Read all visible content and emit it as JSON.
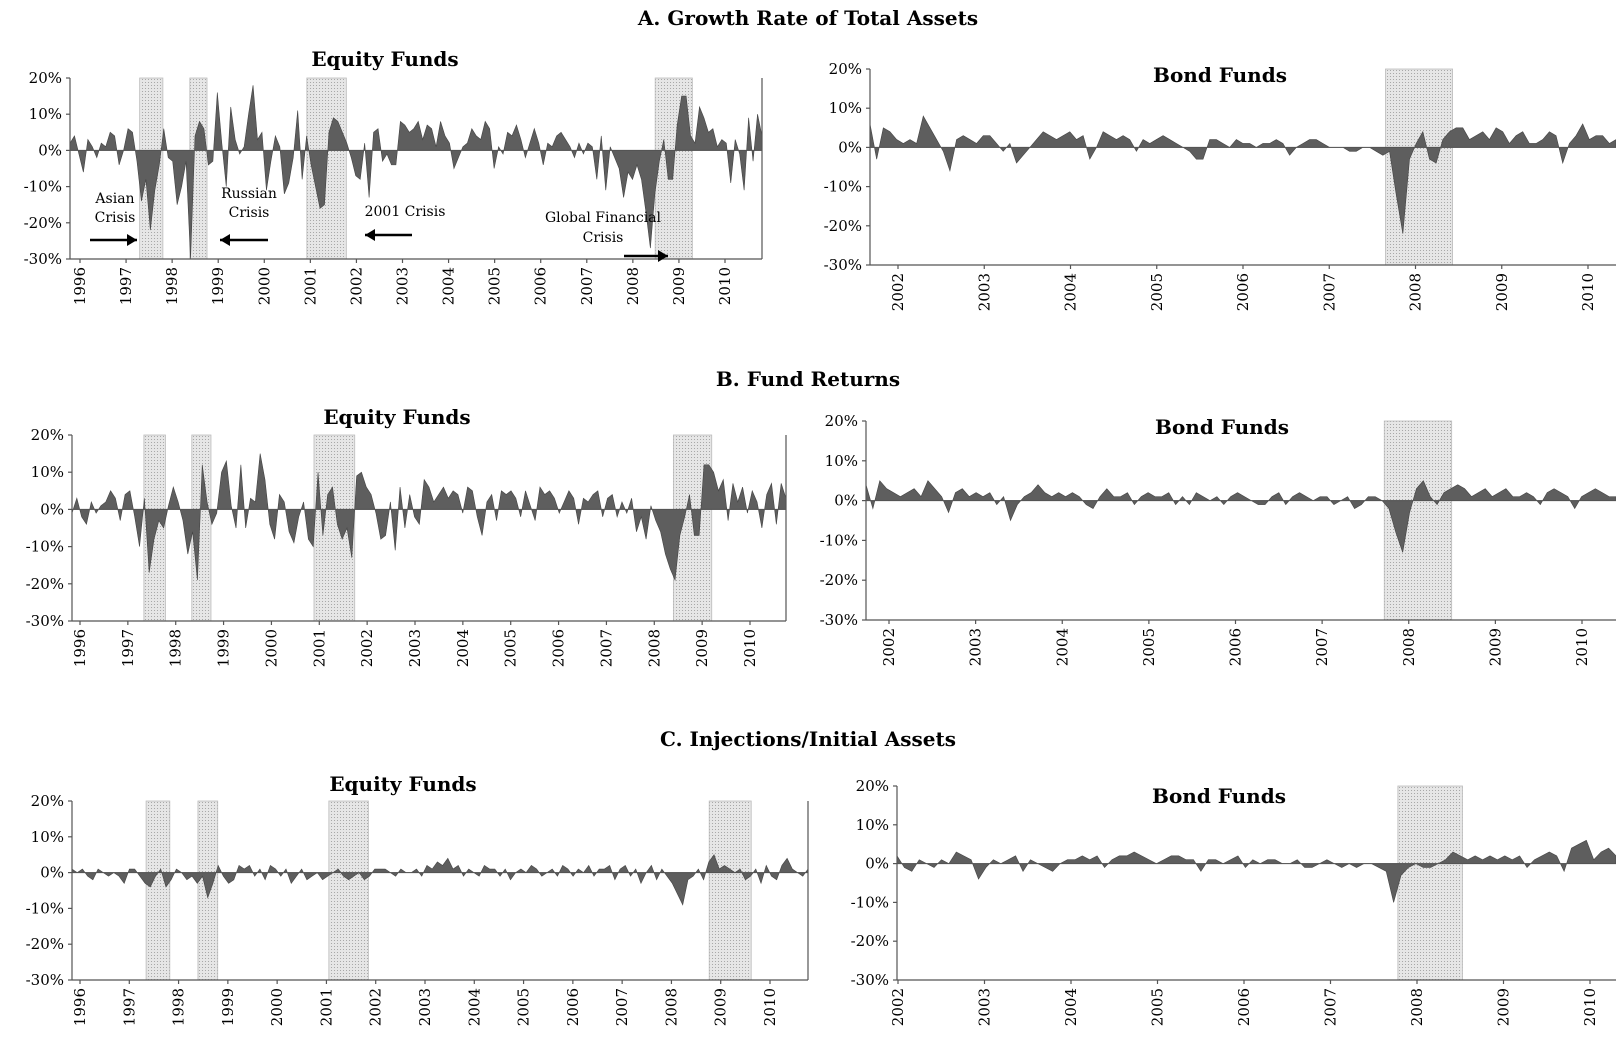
{
  "sections": [
    {
      "title": "A. Growth Rate of Total Assets"
    },
    {
      "title": "B. Fund Returns"
    },
    {
      "title": "C. Injections/Initial Assets"
    }
  ],
  "chart_data": [
    {
      "type": "area",
      "panel": "A-equity",
      "title": "Equity Funds",
      "x_start": 1996.0,
      "x_end": 2010.9,
      "ylim": [
        -30,
        20
      ],
      "yticks": [
        "20%",
        "10%",
        "0%",
        "-10%",
        "-20%",
        "-30%"
      ],
      "xticks": [
        "1996",
        "1997",
        "1998",
        "1999",
        "2000",
        "2001",
        "2002",
        "2003",
        "2004",
        "2005",
        "2006",
        "2007",
        "2008",
        "2009",
        "2010"
      ],
      "shaded": [
        [
          1997.5,
          1998.0
        ],
        [
          1998.58,
          1998.95
        ],
        [
          2001.1,
          2001.95
        ],
        [
          2008.6,
          2009.4
        ]
      ],
      "annotations": [
        {
          "text": "Asian Crisis",
          "lines": [
            "Asian",
            "Crisis"
          ]
        },
        {
          "text": "Russian Crisis",
          "lines": [
            "Russian",
            "Crisis"
          ]
        },
        {
          "text": "2001 Crisis",
          "lines": [
            "2001 Crisis"
          ]
        },
        {
          "text": "Global Financial Crisis",
          "lines": [
            "Global Financial",
            "Crisis"
          ]
        }
      ],
      "values": [
        2,
        4,
        -1,
        -6,
        3,
        1,
        -2,
        2,
        1,
        5,
        4,
        -4,
        0,
        6,
        5,
        -3,
        -14,
        -8,
        -22,
        -11,
        -4,
        6,
        -2,
        -3,
        -15,
        -10,
        -3,
        -30,
        4,
        8,
        6,
        -4,
        -3,
        16,
        2,
        -10,
        12,
        3,
        -1,
        1,
        10,
        18,
        3,
        5,
        -11,
        -3,
        4,
        1,
        -12,
        -9,
        -2,
        11,
        -8,
        4,
        -4,
        -10,
        -16,
        -15,
        5,
        9,
        8,
        5,
        2,
        -2,
        -7,
        -8,
        2,
        -13,
        5,
        6,
        -3,
        -1,
        -4,
        -4,
        8,
        7,
        5,
        6,
        8,
        3,
        7,
        6,
        1,
        8,
        4,
        2,
        -5,
        -2,
        1,
        2,
        6,
        4,
        3,
        8,
        6,
        -5,
        1,
        -1,
        5,
        4,
        7,
        3,
        -2,
        2,
        6,
        2,
        -4,
        2,
        1,
        4,
        5,
        3,
        1,
        -2,
        2,
        -1,
        2,
        1,
        -8,
        4,
        -11,
        1,
        -2,
        -5,
        -13,
        -6,
        -8,
        -4,
        -8,
        -17,
        -27,
        -12,
        -3,
        3,
        -8,
        -8,
        7,
        15,
        15,
        4,
        2,
        12,
        9,
        5,
        6,
        1,
        3,
        2,
        -9,
        3,
        -1,
        -11,
        9,
        -3,
        10,
        4
      ]
    },
    {
      "type": "area",
      "panel": "A-bond",
      "title": "Bond Funds",
      "x_start": 2002.0,
      "x_end": 2010.9,
      "ylim": [
        -30,
        20
      ],
      "yticks": [
        "20%",
        "10%",
        "0%",
        "-10%",
        "-20%",
        "-30%"
      ],
      "xticks": [
        "2002",
        "2003",
        "2004",
        "2005",
        "2006",
        "2007",
        "2008",
        "2009",
        "2010"
      ],
      "shaded": [
        [
          2008.15,
          2008.95
        ]
      ],
      "values": [
        6,
        -3,
        5,
        4,
        2,
        1,
        2,
        1,
        8,
        5,
        2,
        -1,
        -6,
        2,
        3,
        2,
        1,
        3,
        3,
        1,
        -1,
        1,
        -4,
        -2,
        0,
        2,
        4,
        3,
        2,
        3,
        4,
        2,
        3,
        -3,
        0,
        4,
        3,
        2,
        3,
        2,
        -1,
        2,
        1,
        2,
        3,
        2,
        1,
        0,
        -1,
        -3,
        -3,
        2,
        2,
        1,
        0,
        2,
        1,
        1,
        0,
        1,
        1,
        2,
        1,
        -2,
        0,
        1,
        2,
        2,
        1,
        0,
        0,
        0,
        -1,
        -1,
        0,
        0,
        -1,
        -2,
        -1,
        -12,
        -22,
        -3,
        1,
        4,
        -3,
        -4,
        2,
        4,
        5,
        5,
        2,
        3,
        4,
        2,
        5,
        4,
        1,
        3,
        4,
        1,
        1,
        2,
        4,
        3,
        -4,
        1,
        3,
        6,
        2,
        3,
        3,
        1,
        2
      ]
    },
    {
      "type": "area",
      "panel": "B-equity",
      "title": "Equity Funds",
      "x_start": 1996.0,
      "x_end": 2010.9,
      "ylim": [
        -30,
        20
      ],
      "yticks": [
        "20%",
        "10%",
        "0%",
        "-10%",
        "-20%",
        "-30%"
      ],
      "xticks": [
        "1996",
        "1997",
        "1998",
        "1999",
        "2000",
        "2001",
        "2002",
        "2003",
        "2004",
        "2005",
        "2006",
        "2007",
        "2008",
        "2009",
        "2010"
      ],
      "shaded": [
        [
          1997.5,
          1997.95
        ],
        [
          1998.5,
          1998.9
        ],
        [
          2001.05,
          2001.9
        ],
        [
          2008.55,
          2009.35
        ]
      ],
      "values": [
        -1,
        3,
        -2,
        -4,
        2,
        -1,
        1,
        2,
        5,
        3,
        -3,
        4,
        5,
        -2,
        -10,
        3,
        -17,
        -8,
        -3,
        -5,
        1,
        6,
        2,
        -3,
        -12,
        -6,
        -19,
        12,
        2,
        -4,
        -1,
        10,
        13,
        1,
        -5,
        12,
        -5,
        3,
        2,
        15,
        8,
        -4,
        -8,
        4,
        2,
        -6,
        -9,
        -2,
        2,
        -8,
        -10,
        10,
        -7,
        4,
        6,
        -4,
        -8,
        -5,
        -13,
        9,
        10,
        6,
        4,
        -1,
        -8,
        -7,
        2,
        -11,
        6,
        -5,
        4,
        -2,
        -4,
        8,
        6,
        2,
        4,
        6,
        3,
        5,
        4,
        -1,
        6,
        5,
        -2,
        -7,
        2,
        4,
        -3,
        5,
        4,
        5,
        3,
        -2,
        5,
        1,
        -3,
        6,
        4,
        5,
        3,
        -1,
        2,
        5,
        3,
        -4,
        3,
        2,
        4,
        5,
        -2,
        3,
        4,
        -2,
        2,
        -1,
        3,
        -6,
        -2,
        -8,
        1,
        -3,
        -6,
        -12,
        -16,
        -19,
        -7,
        -2,
        4,
        -7,
        -7,
        12,
        12,
        10,
        5,
        8,
        -3,
        7,
        2,
        6,
        -1,
        5,
        2,
        -5,
        4,
        7,
        -4,
        7,
        3
      ]
    },
    {
      "type": "area",
      "panel": "B-bond",
      "title": "Bond Funds",
      "x_start": 2002.0,
      "x_end": 2010.9,
      "ylim": [
        -30,
        20
      ],
      "yticks": [
        "20%",
        "10%",
        "0%",
        "-10%",
        "-20%",
        "-30%"
      ],
      "xticks": [
        "2002",
        "2003",
        "2004",
        "2005",
        "2006",
        "2007",
        "2008",
        "2009",
        "2010"
      ],
      "shaded": [
        [
          2008.15,
          2008.95
        ]
      ],
      "values": [
        4,
        -2,
        5,
        3,
        2,
        1,
        2,
        3,
        1,
        5,
        3,
        1,
        -3,
        2,
        3,
        1,
        2,
        1,
        2,
        -1,
        1,
        -5,
        -1,
        1,
        2,
        4,
        2,
        1,
        2,
        1,
        2,
        1,
        -1,
        -2,
        1,
        3,
        1,
        1,
        2,
        -1,
        1,
        2,
        1,
        1,
        2,
        -1,
        1,
        -1,
        2,
        1,
        0,
        1,
        -1,
        1,
        2,
        1,
        0,
        -1,
        -1,
        1,
        2,
        -1,
        1,
        2,
        1,
        0,
        1,
        1,
        -1,
        0,
        1,
        -2,
        -1,
        1,
        1,
        0,
        -2,
        -8,
        -13,
        -3,
        3,
        5,
        1,
        -1,
        2,
        3,
        4,
        3,
        1,
        2,
        3,
        1,
        2,
        3,
        1,
        1,
        2,
        1,
        -1,
        2,
        3,
        2,
        1,
        -2,
        1,
        2,
        3,
        2,
        1,
        1
      ]
    },
    {
      "type": "area",
      "panel": "C-equity",
      "title": "Equity Funds",
      "x_start": 1996.0,
      "x_end": 2010.9,
      "ylim": [
        -30,
        20
      ],
      "yticks": [
        "20%",
        "10%",
        "0%",
        "-10%",
        "-20%",
        "-30%"
      ],
      "xticks": [
        "1996",
        "1997",
        "1998",
        "1999",
        "2000",
        "2001",
        "2002",
        "2003",
        "2004",
        "2005",
        "2006",
        "2007",
        "2008",
        "2009",
        "2010"
      ],
      "shaded": [
        [
          1997.5,
          1997.98
        ],
        [
          1998.55,
          1998.95
        ],
        [
          2001.2,
          2002.0
        ],
        [
          2008.9,
          2009.75
        ]
      ],
      "values": [
        1,
        0,
        1,
        -1,
        -2,
        1,
        0,
        -1,
        0,
        -1,
        -3,
        1,
        1,
        -1,
        -3,
        -4,
        -1,
        1,
        -4,
        -2,
        1,
        0,
        -2,
        -1,
        -3,
        -1,
        -7,
        -3,
        2,
        -1,
        -3,
        -2,
        2,
        1,
        2,
        -1,
        1,
        -2,
        2,
        1,
        -1,
        1,
        -3,
        -1,
        1,
        -2,
        -1,
        0,
        -2,
        -1,
        0,
        1,
        -1,
        -2,
        -1,
        0,
        -2,
        -1,
        1,
        1,
        1,
        0,
        -1,
        1,
        0,
        0,
        1,
        -1,
        2,
        1,
        3,
        2,
        4,
        1,
        2,
        -1,
        1,
        0,
        -1,
        2,
        1,
        1,
        -1,
        1,
        -2,
        0,
        1,
        0,
        2,
        1,
        -1,
        0,
        1,
        -1,
        2,
        1,
        -1,
        1,
        0,
        2,
        -1,
        1,
        1,
        2,
        -2,
        1,
        2,
        -1,
        1,
        -3,
        0,
        2,
        -2,
        1,
        -1,
        -3,
        -6,
        -9,
        -2,
        -1,
        1,
        -2,
        3,
        5,
        1,
        2,
        1,
        0,
        1,
        -2,
        -1,
        1,
        -3,
        2,
        -1,
        -2,
        2,
        4,
        1,
        0,
        -1,
        1
      ]
    },
    {
      "type": "area",
      "panel": "C-bond",
      "title": "Bond Funds",
      "x_start": 2002.0,
      "x_end": 2010.9,
      "ylim": [
        -30,
        20
      ],
      "yticks": [
        "20%",
        "10%",
        "0%",
        "-10%",
        "-20%",
        "-30%"
      ],
      "xticks": [
        "2002",
        "2003",
        "2004",
        "2005",
        "2006",
        "2007",
        "2008",
        "2009",
        "2010"
      ],
      "shaded": [
        [
          2008.2,
          2009.0
        ]
      ],
      "values": [
        2,
        -1,
        -2,
        1,
        0,
        -1,
        1,
        0,
        3,
        2,
        1,
        -4,
        -1,
        1,
        0,
        1,
        2,
        -2,
        1,
        0,
        -1,
        -2,
        0,
        1,
        1,
        2,
        1,
        2,
        -1,
        1,
        2,
        2,
        3,
        2,
        1,
        0,
        1,
        2,
        2,
        1,
        1,
        -2,
        1,
        1,
        0,
        1,
        2,
        -1,
        1,
        0,
        1,
        1,
        0,
        0,
        1,
        -1,
        -1,
        0,
        1,
        0,
        -1,
        0,
        -1,
        0,
        0,
        -1,
        -2,
        -10,
        -3,
        -1,
        0,
        -1,
        -1,
        0,
        1,
        3,
        2,
        1,
        2,
        1,
        2,
        1,
        2,
        1,
        2,
        -1,
        1,
        2,
        3,
        2,
        -2,
        4,
        5,
        6,
        1,
        3,
        4,
        2
      ]
    }
  ]
}
